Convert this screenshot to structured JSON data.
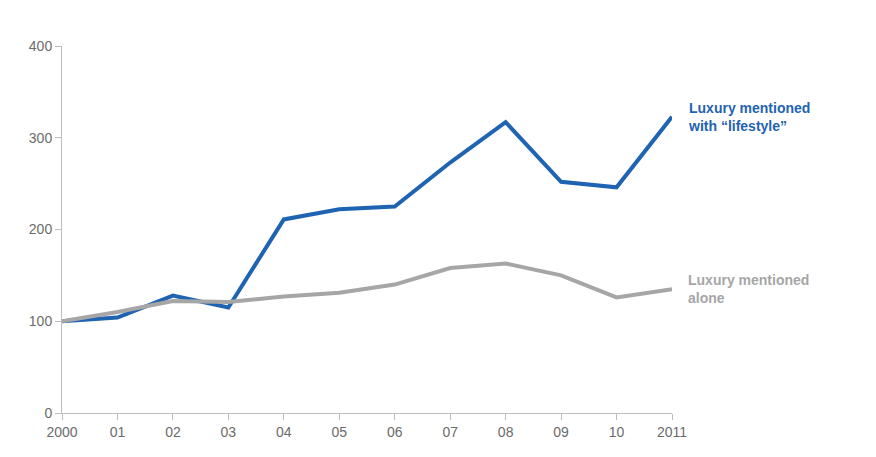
{
  "chart_data": {
    "type": "line",
    "categories": [
      "2000",
      "01",
      "02",
      "03",
      "04",
      "05",
      "06",
      "07",
      "08",
      "09",
      "10",
      "2011"
    ],
    "series": [
      {
        "name": "Luxury mentioned with “lifestyle”",
        "color": "#1f63b3",
        "values": [
          100,
          104,
          128,
          115,
          211,
          222,
          225,
          273,
          317,
          252,
          246,
          323
        ]
      },
      {
        "name": "Luxury mentioned alone",
        "color": "#a6a6a6",
        "values": [
          100,
          110,
          122,
          121,
          127,
          131,
          140,
          158,
          163,
          150,
          126,
          135
        ]
      }
    ],
    "ylim": [
      0,
      400
    ],
    "yticks": [
      0,
      100,
      200,
      300,
      400
    ],
    "grid": false
  }
}
